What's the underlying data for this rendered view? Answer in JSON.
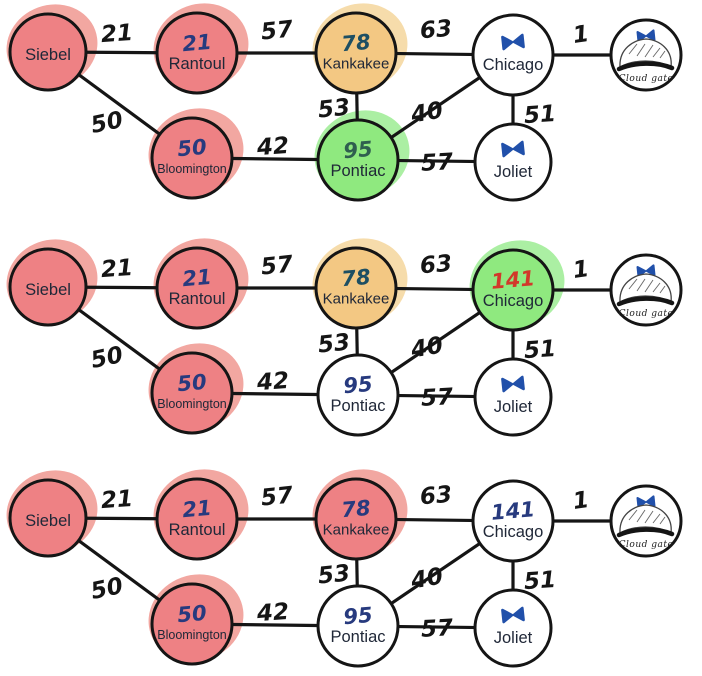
{
  "diagram": {
    "nodes": [
      {
        "id": "siebel",
        "label": "Siebel"
      },
      {
        "id": "rantoul",
        "label": "Rantoul"
      },
      {
        "id": "kankakee",
        "label": "Kankakee"
      },
      {
        "id": "chicago",
        "label": "Chicago"
      },
      {
        "id": "cloudgate",
        "label": "Cloud gate",
        "sketch": "cloud-gate-bean"
      },
      {
        "id": "bloomington",
        "label": "Bloomington"
      },
      {
        "id": "pontiac",
        "label": "Pontiac"
      },
      {
        "id": "joliet",
        "label": "Joliet"
      }
    ],
    "edges": [
      {
        "from": "siebel",
        "to": "rantoul",
        "weight": "21"
      },
      {
        "from": "rantoul",
        "to": "kankakee",
        "weight": "57"
      },
      {
        "from": "kankakee",
        "to": "chicago",
        "weight": "63"
      },
      {
        "from": "chicago",
        "to": "cloudgate",
        "weight": "1"
      },
      {
        "from": "siebel",
        "to": "bloomington",
        "weight": "50"
      },
      {
        "from": "bloomington",
        "to": "pontiac",
        "weight": "42"
      },
      {
        "from": "kankakee",
        "to": "pontiac",
        "weight": "53"
      },
      {
        "from": "pontiac",
        "to": "chicago",
        "weight": "40"
      },
      {
        "from": "chicago",
        "to": "joliet",
        "weight": "51"
      },
      {
        "from": "pontiac",
        "to": "joliet",
        "weight": "57"
      }
    ],
    "colors": {
      "red_fill": "#ee8184",
      "red_halo": "#f2a7a1",
      "orange_fill": "#f3c883",
      "orange_halo": "#f6dcab",
      "green_fill": "#8fe97f",
      "green_halo": "#abefa3",
      "white_fill": "#ffffff",
      "ink_blue": "#273a7e",
      "ink_teal": "#1d4f63",
      "ink_green": "#2f5f4f",
      "ink_red": "#d2382a",
      "infinity_blue": "#2150aa",
      "line": "#151515",
      "label": "#202838"
    },
    "rows": [
      {
        "name": "step-1",
        "states": {
          "siebel": {
            "fill": "red",
            "halo": true,
            "value": ""
          },
          "rantoul": {
            "fill": "red",
            "halo": true,
            "value": "21",
            "ink": "ink_blue"
          },
          "kankakee": {
            "fill": "orange",
            "halo": true,
            "value": "78",
            "ink": "ink_teal"
          },
          "chicago": {
            "fill": "white",
            "halo": false,
            "value": "∞"
          },
          "cloudgate": {
            "fill": "white",
            "halo": false,
            "value": "∞"
          },
          "bloomington": {
            "fill": "red",
            "halo": true,
            "value": "50",
            "ink": "ink_blue"
          },
          "pontiac": {
            "fill": "green",
            "halo": true,
            "value": "95",
            "ink": "ink_green"
          },
          "joliet": {
            "fill": "white",
            "halo": false,
            "value": "∞"
          }
        }
      },
      {
        "name": "step-2",
        "states": {
          "siebel": {
            "fill": "red",
            "halo": true,
            "value": ""
          },
          "rantoul": {
            "fill": "red",
            "halo": true,
            "value": "21",
            "ink": "ink_blue"
          },
          "kankakee": {
            "fill": "orange",
            "halo": true,
            "value": "78",
            "ink": "ink_teal"
          },
          "chicago": {
            "fill": "green",
            "halo": true,
            "value": "141",
            "ink": "ink_red"
          },
          "cloudgate": {
            "fill": "white",
            "halo": false,
            "value": "∞"
          },
          "bloomington": {
            "fill": "red",
            "halo": true,
            "value": "50",
            "ink": "ink_blue"
          },
          "pontiac": {
            "fill": "white",
            "halo": false,
            "value": "95",
            "ink": "ink_blue"
          },
          "joliet": {
            "fill": "white",
            "halo": false,
            "value": "∞"
          }
        }
      },
      {
        "name": "step-3",
        "states": {
          "siebel": {
            "fill": "red",
            "halo": true,
            "value": ""
          },
          "rantoul": {
            "fill": "red",
            "halo": true,
            "value": "21",
            "ink": "ink_blue"
          },
          "kankakee": {
            "fill": "red",
            "halo": true,
            "value": "78",
            "ink": "ink_blue"
          },
          "chicago": {
            "fill": "white",
            "halo": false,
            "value": "141",
            "ink": "ink_blue"
          },
          "cloudgate": {
            "fill": "white",
            "halo": false,
            "value": "∞"
          },
          "bloomington": {
            "fill": "red",
            "halo": true,
            "value": "50",
            "ink": "ink_blue"
          },
          "pontiac": {
            "fill": "white",
            "halo": false,
            "value": "95",
            "ink": "ink_blue"
          },
          "joliet": {
            "fill": "white",
            "halo": false,
            "value": "∞"
          }
        }
      }
    ]
  }
}
